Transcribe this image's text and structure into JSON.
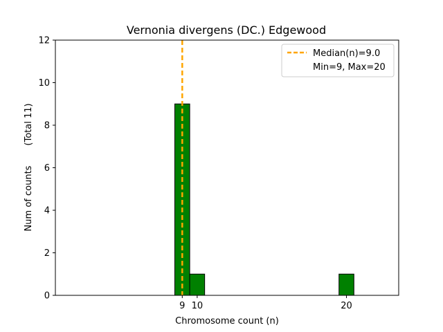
{
  "chart_data": {
    "type": "bar",
    "title": "Vernonia divergens (DC.) Edgewood",
    "xlabel": "Chromosome count (n)",
    "ylabel_left": "Num of counts",
    "ylabel_right": "(Total 11)",
    "xlim": [
      0.5,
      23.5
    ],
    "ylim": [
      0,
      12
    ],
    "bar_width": 1.0,
    "bars": [
      {
        "x": 9,
        "value": 9
      },
      {
        "x": 10,
        "value": 1
      },
      {
        "x": 20,
        "value": 1
      }
    ],
    "xticks": [
      9,
      10,
      20
    ],
    "yticks": [
      0,
      2,
      4,
      6,
      8,
      10,
      12
    ],
    "median": 9.0,
    "legend": {
      "position": "top-right",
      "entries": [
        "Median(n)=9.0",
        "Min=9, Max=20"
      ]
    },
    "grid": false,
    "colors": {
      "bar_fill": "#008000",
      "bar_edge": "#000000",
      "median_line": "#FFA500"
    }
  }
}
